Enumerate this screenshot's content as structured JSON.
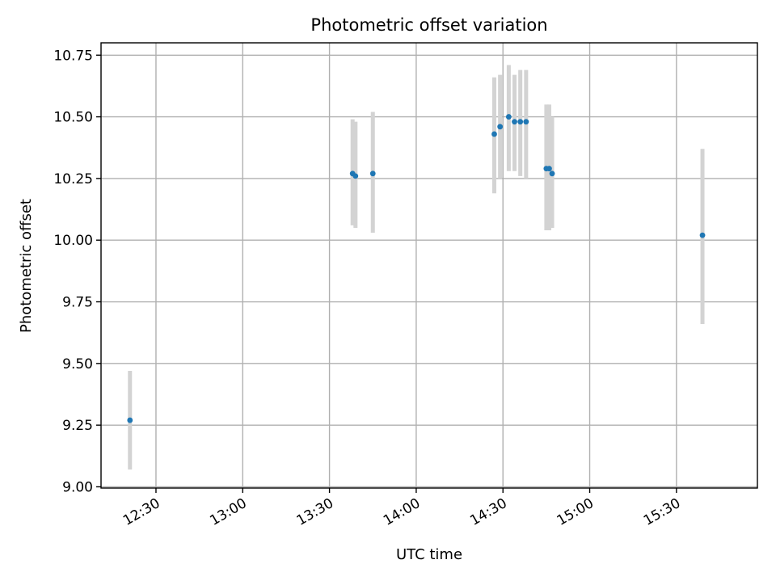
{
  "chart_data": {
    "type": "scatter",
    "title": "Photometric offset variation",
    "xlabel": "UTC time",
    "ylabel": "Photometric offset",
    "x_unit": "time (HH:MM UTC)",
    "xlim": [
      "12:11",
      "15:58"
    ],
    "ylim": [
      8.995,
      10.8
    ],
    "x_ticks": [
      "12:30",
      "13:00",
      "13:30",
      "14:00",
      "14:30",
      "15:00",
      "15:30"
    ],
    "y_ticks": [
      "9.00",
      "9.25",
      "9.50",
      "9.75",
      "10.00",
      "10.25",
      "10.50",
      "10.75"
    ],
    "grid": true,
    "legend": "none",
    "colors": {
      "point": "#1f77b4",
      "error_bar": "#d3d3d3"
    },
    "points": [
      {
        "x": "12:21",
        "y": 9.27,
        "ylow": 9.07,
        "yhigh": 9.47
      },
      {
        "x": "13:38",
        "y": 10.27,
        "ylow": 10.06,
        "yhigh": 10.49
      },
      {
        "x": "13:39",
        "y": 10.26,
        "ylow": 10.05,
        "yhigh": 10.48
      },
      {
        "x": "13:45",
        "y": 10.27,
        "ylow": 10.03,
        "yhigh": 10.52
      },
      {
        "x": "14:27",
        "y": 10.43,
        "ylow": 10.19,
        "yhigh": 10.66
      },
      {
        "x": "14:29",
        "y": 10.46,
        "ylow": 10.25,
        "yhigh": 10.67
      },
      {
        "x": "14:32",
        "y": 10.5,
        "ylow": 10.28,
        "yhigh": 10.71
      },
      {
        "x": "14:34",
        "y": 10.48,
        "ylow": 10.28,
        "yhigh": 10.67
      },
      {
        "x": "14:36",
        "y": 10.48,
        "ylow": 10.26,
        "yhigh": 10.69
      },
      {
        "x": "14:38",
        "y": 10.48,
        "ylow": 10.25,
        "yhigh": 10.69
      },
      {
        "x": "14:45",
        "y": 10.29,
        "ylow": 10.04,
        "yhigh": 10.55
      },
      {
        "x": "14:46",
        "y": 10.29,
        "ylow": 10.04,
        "yhigh": 10.55
      },
      {
        "x": "14:47",
        "y": 10.27,
        "ylow": 10.05,
        "yhigh": 10.5
      },
      {
        "x": "15:39",
        "y": 10.02,
        "ylow": 9.66,
        "yhigh": 10.37
      }
    ]
  }
}
